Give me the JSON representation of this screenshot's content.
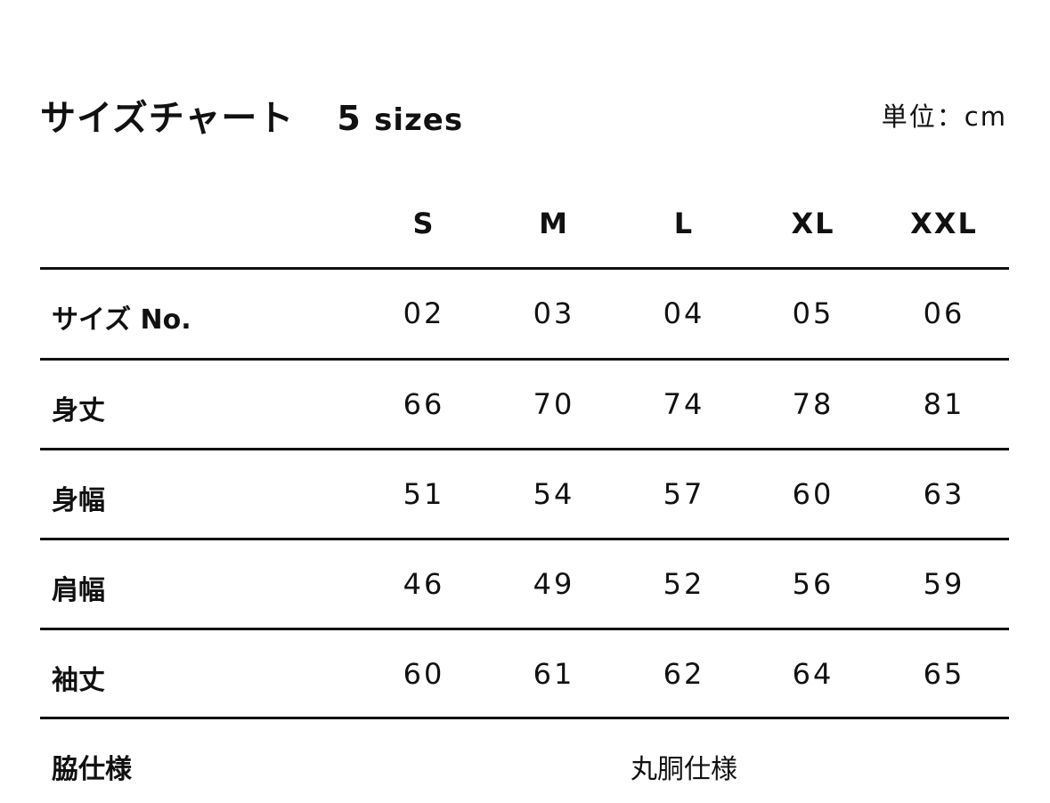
{
  "title": "サイズチャート",
  "size_count_number": "5",
  "size_count_unit": "sizes",
  "unit_label": "単位：cm",
  "columns": [
    "S",
    "M",
    "L",
    "XL",
    "XXL"
  ],
  "rows": [
    {
      "label": "サイズ No.",
      "values": [
        "02",
        "03",
        "04",
        "05",
        "06"
      ]
    },
    {
      "label": "身丈",
      "values": [
        "66",
        "70",
        "74",
        "78",
        "81"
      ]
    },
    {
      "label": "身幅",
      "values": [
        "51",
        "54",
        "57",
        "60",
        "63"
      ]
    },
    {
      "label": "肩幅",
      "values": [
        "46",
        "49",
        "52",
        "56",
        "59"
      ]
    },
    {
      "label": "袖丈",
      "values": [
        "60",
        "61",
        "62",
        "64",
        "65"
      ]
    }
  ],
  "side_row": {
    "label": "脇仕様",
    "value": "丸胴仕様"
  }
}
